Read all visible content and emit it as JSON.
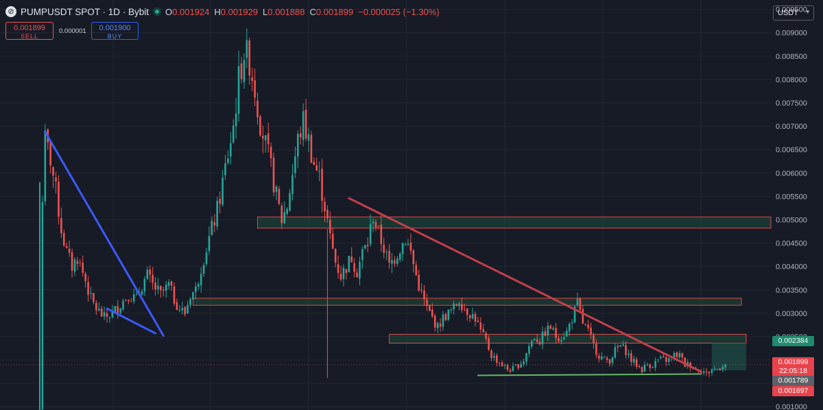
{
  "header": {
    "logo_icon": "pump-logo-icon",
    "symbol": "PUMPUSDT SPOT · 1D · Bybit",
    "status_color": "#26a69a",
    "ohlc": [
      {
        "label": "O",
        "value": "0.001924"
      },
      {
        "label": "H",
        "value": "0.001929"
      },
      {
        "label": "L",
        "value": "0.001888"
      },
      {
        "label": "C",
        "value": "0.001899"
      }
    ],
    "change": "−0.000025 (−1.30%)"
  },
  "trade": {
    "sell_price": "0.001899",
    "sell_label": "SELL",
    "spread": "0.000001",
    "buy_price": "0.001900",
    "buy_label": "BUY"
  },
  "currency_select": {
    "value": "USDT",
    "icon": "chevron-down-icon"
  },
  "price_tags": {
    "green": "0.002384",
    "close": "0.001899",
    "countdown": "22:05:18",
    "grey": "0.001789",
    "low": "0.001697"
  },
  "colors": {
    "background": "#171b26",
    "up": "#26a69a",
    "down": "#ef5350",
    "trendline_blue": "#3d5afe",
    "trendline_red": "#c2404a",
    "support_green": "#66bb6a",
    "zone_fill": "#1e4a3a",
    "zone_border": "#e04848"
  },
  "chart_data": {
    "type": "candlestick",
    "y_axis": {
      "ticks": [
        "0.009500",
        "0.009000",
        "0.008500",
        "0.008000",
        "0.007500",
        "0.007000",
        "0.006500",
        "0.006000",
        "0.005500",
        "0.005000",
        "0.004500",
        "0.004000",
        "0.003500",
        "0.003000",
        "0.002500",
        "0.002000",
        "0.001500",
        "0.001000"
      ],
      "range": [
        0.00093,
        0.0097
      ]
    },
    "grid": true,
    "close_path": [
      [
        0,
        0.00095
      ],
      [
        1,
        0.0055
      ],
      [
        2,
        0.0067
      ],
      [
        4,
        0.0063
      ],
      [
        6,
        0.0056
      ],
      [
        8,
        0.0048
      ],
      [
        10,
        0.0043
      ],
      [
        12,
        0.004
      ],
      [
        14,
        0.0042
      ],
      [
        17,
        0.0037
      ],
      [
        19,
        0.0033
      ],
      [
        21,
        0.0031
      ],
      [
        24,
        0.0029
      ],
      [
        27,
        0.003
      ],
      [
        30,
        0.0032
      ],
      [
        33,
        0.0034
      ],
      [
        36,
        0.0033
      ],
      [
        38,
        0.0036
      ],
      [
        40,
        0.0038
      ],
      [
        42,
        0.0036
      ],
      [
        45,
        0.0034
      ],
      [
        48,
        0.0036
      ],
      [
        50,
        0.0033
      ],
      [
        52,
        0.0031
      ],
      [
        54,
        0.003
      ],
      [
        56,
        0.0034
      ],
      [
        58,
        0.0035
      ],
      [
        60,
        0.004
      ],
      [
        62,
        0.0044
      ],
      [
        64,
        0.0048
      ],
      [
        66,
        0.0052
      ],
      [
        68,
        0.0058
      ],
      [
        70,
        0.0064
      ],
      [
        72,
        0.007
      ],
      [
        74,
        0.008
      ],
      [
        76,
        0.0086
      ],
      [
        78,
        0.0084
      ],
      [
        80,
        0.0078
      ],
      [
        82,
        0.0071
      ],
      [
        84,
        0.0066
      ],
      [
        86,
        0.0061
      ],
      [
        88,
        0.0055
      ],
      [
        90,
        0.005
      ],
      [
        92,
        0.0053
      ],
      [
        94,
        0.006
      ],
      [
        96,
        0.0067
      ],
      [
        98,
        0.0071
      ],
      [
        100,
        0.0067
      ],
      [
        102,
        0.0062
      ],
      [
        104,
        0.0059
      ],
      [
        106,
        0.0053
      ],
      [
        108,
        0.0046
      ],
      [
        110,
        0.0041
      ],
      [
        112,
        0.0038
      ],
      [
        114,
        0.004
      ],
      [
        116,
        0.0042
      ],
      [
        118,
        0.0039
      ],
      [
        120,
        0.0043
      ],
      [
        122,
        0.0045
      ],
      [
        124,
        0.0051
      ],
      [
        126,
        0.0047
      ],
      [
        128,
        0.0044
      ],
      [
        130,
        0.004
      ],
      [
        132,
        0.0042
      ],
      [
        134,
        0.0044
      ],
      [
        136,
        0.0046
      ],
      [
        138,
        0.0043
      ],
      [
        140,
        0.0038
      ],
      [
        142,
        0.0034
      ],
      [
        144,
        0.0031
      ],
      [
        146,
        0.0029
      ],
      [
        148,
        0.0027
      ],
      [
        150,
        0.0029
      ],
      [
        152,
        0.003
      ],
      [
        154,
        0.0031
      ],
      [
        156,
        0.0033
      ],
      [
        158,
        0.0031
      ],
      [
        160,
        0.003
      ],
      [
        162,
        0.0029
      ],
      [
        164,
        0.0026
      ],
      [
        166,
        0.0024
      ],
      [
        168,
        0.0021
      ],
      [
        170,
        0.002
      ],
      [
        172,
        0.0019
      ],
      [
        174,
        0.0018
      ],
      [
        176,
        0.0018
      ],
      [
        178,
        0.0019
      ],
      [
        180,
        0.002
      ],
      [
        182,
        0.0023
      ],
      [
        184,
        0.0025
      ],
      [
        186,
        0.0024
      ],
      [
        188,
        0.0026
      ],
      [
        190,
        0.0027
      ],
      [
        192,
        0.0025
      ],
      [
        194,
        0.0025
      ],
      [
        196,
        0.0026
      ],
      [
        198,
        0.0029
      ],
      [
        200,
        0.0032
      ],
      [
        202,
        0.0028
      ],
      [
        204,
        0.0026
      ],
      [
        206,
        0.0023
      ],
      [
        208,
        0.0021
      ],
      [
        210,
        0.002
      ],
      [
        212,
        0.002
      ],
      [
        214,
        0.0022
      ],
      [
        216,
        0.0023
      ],
      [
        218,
        0.0022
      ],
      [
        220,
        0.002
      ],
      [
        222,
        0.0019
      ],
      [
        224,
        0.0018
      ],
      [
        226,
        0.0019
      ],
      [
        228,
        0.0019
      ],
      [
        230,
        0.002
      ],
      [
        232,
        0.002
      ],
      [
        234,
        0.002
      ],
      [
        236,
        0.0021
      ],
      [
        238,
        0.0021
      ],
      [
        240,
        0.0019
      ],
      [
        242,
        0.0019
      ],
      [
        244,
        0.0018
      ],
      [
        246,
        0.0018
      ],
      [
        248,
        0.0017
      ],
      [
        250,
        0.0018
      ],
      [
        252,
        0.0018
      ],
      [
        254,
        0.0019
      ],
      [
        255,
        0.0019
      ]
    ],
    "trendlines": [
      {
        "color": "blue",
        "from": [
          2,
          0.00688
        ],
        "to": [
          46,
          0.00252
        ]
      },
      {
        "color": "blue",
        "from": [
          25,
          0.0031
        ],
        "to": [
          43,
          0.00257
        ]
      },
      {
        "color": "red",
        "from": [
          115,
          0.00546
        ],
        "to": [
          246,
          0.00175
        ]
      },
      {
        "color": "green",
        "from": [
          163,
          0.00167
        ],
        "to": [
          246,
          0.0017
        ]
      }
    ],
    "zones": [
      {
        "start": 81,
        "top": 0.00506,
        "bottom": 0.00482
      },
      {
        "start": 57,
        "top": 0.00332,
        "bottom": 0.00317
      },
      {
        "start": 130,
        "top": 0.00255,
        "bottom": 0.00236
      },
      {
        "start": 250,
        "top": 0.00236,
        "bottom": 0.00178
      }
    ],
    "x_range": [
      0,
      262
    ]
  }
}
